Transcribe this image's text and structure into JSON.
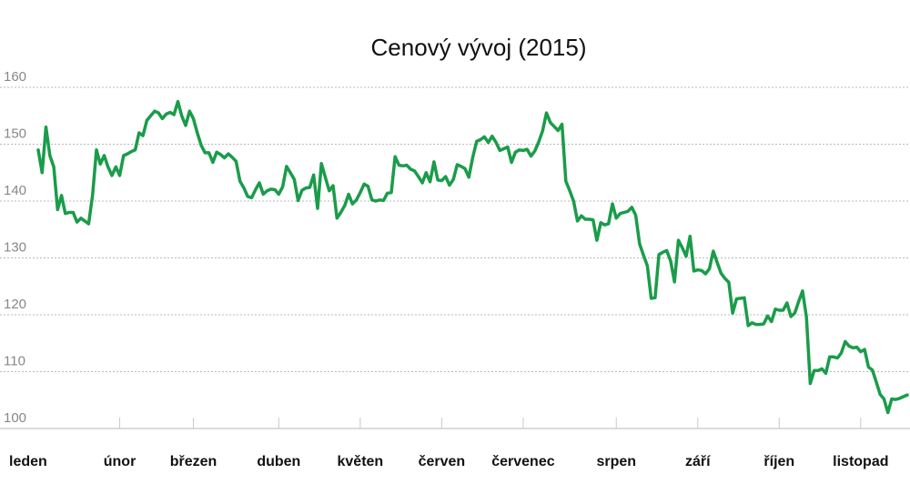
{
  "chart_data": {
    "type": "line",
    "title": "Cenový vývoj (2015)",
    "xlabel": "",
    "ylabel": "",
    "ylim": [
      100,
      160
    ],
    "yticks": [
      100,
      110,
      120,
      130,
      140,
      150,
      160
    ],
    "grid": true,
    "months": [
      "leden",
      "únor",
      "březen",
      "duben",
      "květen",
      "červen",
      "červenec",
      "srpen",
      "září",
      "říjen",
      "listopad"
    ],
    "month_positions": [
      0,
      21,
      40,
      62,
      83,
      104,
      125,
      149,
      170,
      191,
      212
    ],
    "x_range": [
      0,
      224
    ],
    "line_color": "#1a9c4a",
    "grid_color": "#b9b9b9",
    "series": [
      {
        "values": [
          149,
          145,
          153,
          148,
          146,
          138.5,
          141,
          137.8,
          138,
          138,
          136.3,
          137,
          136.5,
          136,
          141,
          149,
          146.5,
          148,
          146,
          144.5,
          146,
          144.5,
          148,
          148.3,
          148.7,
          149,
          152,
          151.5,
          154.2,
          155,
          155.8,
          155.5,
          154.5,
          155.3,
          155.6,
          155.2,
          157.5,
          155,
          153.3,
          155.8,
          154.5,
          152,
          149.8,
          148.5,
          148.5,
          146.8,
          148.6,
          148.2,
          147.6,
          148.3,
          147.7,
          147,
          143.5,
          142.3,
          140.8,
          140.6,
          142,
          143.2,
          141.2,
          141.8,
          142.1,
          142,
          141.2,
          142.5,
          146.1,
          145,
          143.8,
          140.1,
          141.9,
          142.3,
          142.4,
          144.6,
          138.7,
          146.6,
          144.2,
          141.8,
          142.7,
          137,
          138,
          139.2,
          141.2,
          139.5,
          140.2,
          141.5,
          143,
          142.6,
          140.2,
          140,
          140.2,
          140.1,
          141.4,
          141.5,
          147.8,
          146.3,
          146.2,
          146.3,
          145.6,
          145.3,
          144.3,
          143.2,
          145,
          143.4,
          146.9,
          143.7,
          143.6,
          144.3,
          142.8,
          143.8,
          146.4,
          146.1,
          145.7,
          144.2,
          147.7,
          150.5,
          150.8,
          151.3,
          150.3,
          151.4,
          150.3,
          148.9,
          149.2,
          149.5,
          146.8,
          148.6,
          149,
          148.9,
          149.1,
          147.9,
          148.8,
          150.4,
          152.3,
          155.5,
          153.8,
          153.1,
          152.4,
          153.5,
          143.5,
          141.8,
          140,
          136.5,
          137.4,
          136.8,
          136.8,
          136.7,
          133.1,
          136.2,
          135.8,
          136,
          139.5,
          137,
          137.8,
          138,
          138.2,
          138.9,
          137.5,
          132.5,
          130.5,
          128.6,
          122.9,
          123,
          130.6,
          131,
          131.3,
          129.5,
          125.8,
          133.1,
          131.8,
          130.3,
          133.8,
          127.7,
          127.9,
          127.8,
          127.2,
          128.1,
          131.2,
          129.2,
          127.3,
          126.4,
          125.7,
          120.3,
          122.8,
          122.9,
          123,
          118.1,
          118.6,
          118.3,
          118.3,
          118.4,
          119.8,
          118.8,
          121,
          120.8,
          120.8,
          122.1,
          119.7,
          120.3,
          122.3,
          124.2,
          119.6,
          107.9,
          110.2,
          110.2,
          110.5,
          109.7,
          112.6,
          112.6,
          112.4,
          113.3,
          115.3,
          114.5,
          114.2,
          114.3,
          113.5,
          113.9,
          110.8,
          110.3,
          108.2,
          106,
          105.2,
          102.8,
          105.2,
          105.1,
          105.3,
          105.6,
          105.9
        ]
      }
    ]
  }
}
